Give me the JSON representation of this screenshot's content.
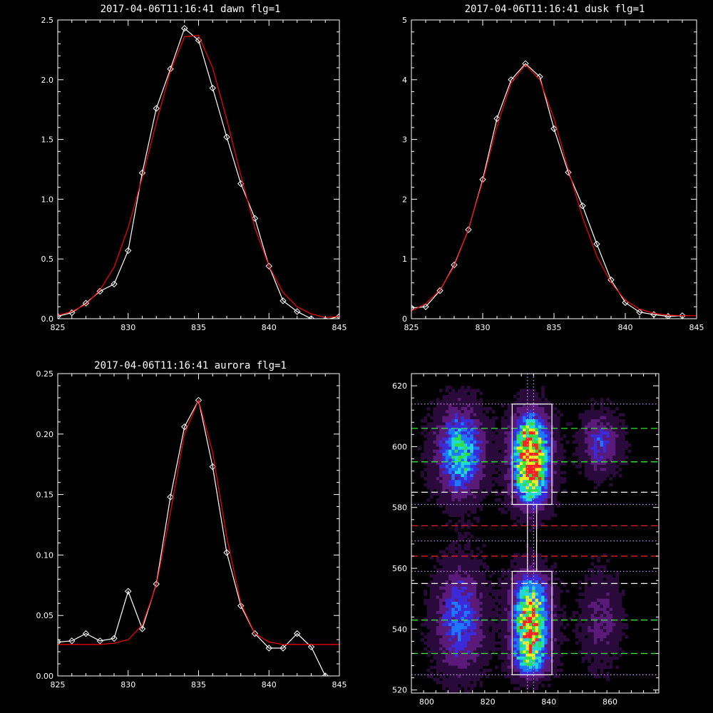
{
  "chart_data": [
    {
      "id": "dawn",
      "type": "line",
      "title": "2017-04-06T11:16:41 dawn flg=1",
      "xlim": [
        825,
        845
      ],
      "ylim": [
        0,
        2.5
      ],
      "xticks": [
        "825",
        "830",
        "835",
        "840",
        "845"
      ],
      "yticks": [
        "0.0",
        "0.5",
        "1.0",
        "1.5",
        "2.0",
        "2.5"
      ],
      "series": [
        {
          "color": "#ffffff",
          "marker": "diamond",
          "x": [
            825,
            826,
            827,
            828,
            829,
            830,
            831,
            832,
            833,
            834,
            835,
            836,
            837,
            838,
            839,
            840,
            841,
            842,
            843,
            844,
            845
          ],
          "y": [
            0.02,
            0.05,
            0.13,
            0.23,
            0.29,
            0.57,
            1.22,
            1.76,
            2.09,
            2.43,
            2.33,
            1.93,
            1.52,
            1.13,
            0.84,
            0.44,
            0.15,
            0.06,
            0.0,
            -0.01,
            0.02
          ]
        },
        {
          "color": "#ff0000",
          "marker": "none",
          "x": [
            825,
            826,
            827,
            828,
            829,
            830,
            831,
            832,
            833,
            834,
            835,
            836,
            837,
            838,
            839,
            840,
            841,
            842,
            843,
            844,
            845
          ],
          "y": [
            0.03,
            0.06,
            0.12,
            0.24,
            0.43,
            0.76,
            1.18,
            1.64,
            2.07,
            2.36,
            2.37,
            2.1,
            1.67,
            1.2,
            0.76,
            0.44,
            0.22,
            0.1,
            0.04,
            0.01,
            0.02
          ]
        }
      ]
    },
    {
      "id": "dusk",
      "type": "line",
      "title": "2017-04-06T11:16:41 dusk flg=1",
      "xlim": [
        825,
        845
      ],
      "ylim": [
        0,
        5
      ],
      "xticks": [
        "825",
        "830",
        "835",
        "840",
        "845"
      ],
      "yticks": [
        "0",
        "1",
        "2",
        "3",
        "4",
        "5"
      ],
      "series": [
        {
          "color": "#ffffff",
          "marker": "diamond",
          "x": [
            825,
            826,
            827,
            828,
            829,
            830,
            831,
            832,
            833,
            834,
            835,
            836,
            837,
            838,
            839,
            840,
            841,
            842,
            843,
            844
          ],
          "y": [
            0.18,
            0.2,
            0.47,
            0.9,
            1.49,
            2.33,
            3.35,
            4.0,
            4.27,
            4.05,
            3.18,
            2.45,
            1.89,
            1.25,
            0.65,
            0.27,
            0.11,
            0.07,
            0.04,
            0.05
          ]
        },
        {
          "color": "#ff0000",
          "marker": "none",
          "x": [
            825,
            826,
            827,
            828,
            829,
            830,
            831,
            832,
            833,
            834,
            835,
            836,
            837,
            838,
            839,
            840,
            841,
            842,
            843,
            844,
            845
          ],
          "y": [
            0.13,
            0.25,
            0.48,
            0.88,
            1.5,
            2.3,
            3.22,
            3.95,
            4.25,
            4.0,
            3.35,
            2.5,
            1.7,
            1.05,
            0.6,
            0.31,
            0.16,
            0.09,
            0.06,
            0.05,
            0.05
          ]
        }
      ]
    },
    {
      "id": "aurora",
      "type": "line",
      "title": "2017-04-06T11:16:41 aurora flg=1",
      "xlim": [
        825,
        845
      ],
      "ylim": [
        0,
        0.25
      ],
      "xticks": [
        "825",
        "830",
        "835",
        "840",
        "845"
      ],
      "yticks": [
        "0.00",
        "0.05",
        "0.10",
        "0.15",
        "0.20",
        "0.25"
      ],
      "series": [
        {
          "color": "#ffffff",
          "marker": "diamond",
          "x": [
            825,
            826,
            827,
            828,
            829,
            830,
            831,
            832,
            833,
            834,
            835,
            836,
            837,
            838,
            839,
            840,
            841,
            842,
            843,
            844
          ],
          "y": [
            0.028,
            0.029,
            0.035,
            0.029,
            0.031,
            0.07,
            0.039,
            0.076,
            0.148,
            0.206,
            0.228,
            0.173,
            0.102,
            0.058,
            0.035,
            0.023,
            0.023,
            0.035,
            0.024,
            0.0
          ]
        },
        {
          "color": "#ff0000",
          "marker": "none",
          "x": [
            825,
            826,
            827,
            828,
            829,
            830,
            831,
            832,
            833,
            834,
            835,
            836,
            837,
            838,
            839,
            840,
            841,
            842,
            843,
            844,
            845
          ],
          "y": [
            0.026,
            0.026,
            0.026,
            0.026,
            0.027,
            0.03,
            0.042,
            0.075,
            0.135,
            0.2,
            0.228,
            0.185,
            0.115,
            0.06,
            0.035,
            0.028,
            0.026,
            0.026,
            0.026,
            0.026,
            0.026
          ]
        }
      ]
    },
    {
      "id": "image",
      "type": "heatmap",
      "xlim": [
        795,
        876
      ],
      "ylim": [
        519,
        624
      ],
      "xticks": [
        "800",
        "820",
        "840",
        "860"
      ],
      "yticks": [
        "520",
        "540",
        "560",
        "580",
        "600",
        "620"
      ],
      "colormap": [
        "#000000",
        "#2a0a3a",
        "#5a1a7a",
        "#3a2ad8",
        "#1e78ff",
        "#20d8d8",
        "#30e040",
        "#f0f020",
        "#ff2020"
      ],
      "blobs": [
        {
          "x": 811,
          "y": 598,
          "sx": 5,
          "sy": 9,
          "amp": 0.62
        },
        {
          "x": 834,
          "y": 600,
          "sx": 4,
          "sy": 7,
          "amp": 1.0
        },
        {
          "x": 834,
          "y": 588,
          "sx": 4,
          "sy": 6,
          "amp": 0.62
        },
        {
          "x": 834,
          "y": 540,
          "sx": 4,
          "sy": 6,
          "amp": 0.8
        },
        {
          "x": 834,
          "y": 551,
          "sx": 4,
          "sy": 6,
          "amp": 0.55
        },
        {
          "x": 834,
          "y": 530,
          "sx": 4,
          "sy": 4,
          "amp": 0.5
        },
        {
          "x": 811,
          "y": 543,
          "sx": 5,
          "sy": 11,
          "amp": 0.42
        },
        {
          "x": 857,
          "y": 601,
          "sx": 4,
          "sy": 6,
          "amp": 0.33
        },
        {
          "x": 857,
          "y": 543,
          "sx": 4,
          "sy": 9,
          "amp": 0.2
        }
      ],
      "rects": [
        {
          "x1": 828,
          "x2": 841,
          "y1": 581,
          "y2": 614,
          "color": "#ffffff"
        },
        {
          "x1": 828,
          "x2": 841,
          "y1": 525,
          "y2": 559,
          "color": "#ffffff"
        },
        {
          "x1": 833,
          "x2": 836,
          "y1": 559,
          "y2": 581,
          "color": "#ffffff"
        }
      ],
      "hlines": [
        {
          "y": 614,
          "color": "#cc99ff",
          "style": "dotted"
        },
        {
          "y": 606,
          "color": "#33ff33",
          "style": "dashed"
        },
        {
          "y": 595,
          "color": "#33ff33",
          "style": "dashed"
        },
        {
          "y": 585,
          "color": "#ffffff",
          "style": "dashed"
        },
        {
          "y": 581,
          "color": "#cc99ff",
          "style": "dotted"
        },
        {
          "y": 574,
          "color": "#ff2020",
          "style": "dashed"
        },
        {
          "y": 569,
          "color": "#cc99ff",
          "style": "dotted"
        },
        {
          "y": 564,
          "color": "#ff2020",
          "style": "dashed"
        },
        {
          "y": 559,
          "color": "#cc99ff",
          "style": "dotted"
        },
        {
          "y": 555,
          "color": "#ffffff",
          "style": "dashed"
        },
        {
          "y": 543,
          "color": "#33ff33",
          "style": "dashed"
        },
        {
          "y": 532,
          "color": "#33ff33",
          "style": "dashed"
        },
        {
          "y": 525,
          "color": "#cc99ff",
          "style": "dotted"
        }
      ],
      "vlines": [
        {
          "x": 833,
          "color": "#cc99ff",
          "style": "dotted"
        },
        {
          "x": 835,
          "color": "#cc99ff",
          "style": "dotted"
        }
      ]
    }
  ]
}
